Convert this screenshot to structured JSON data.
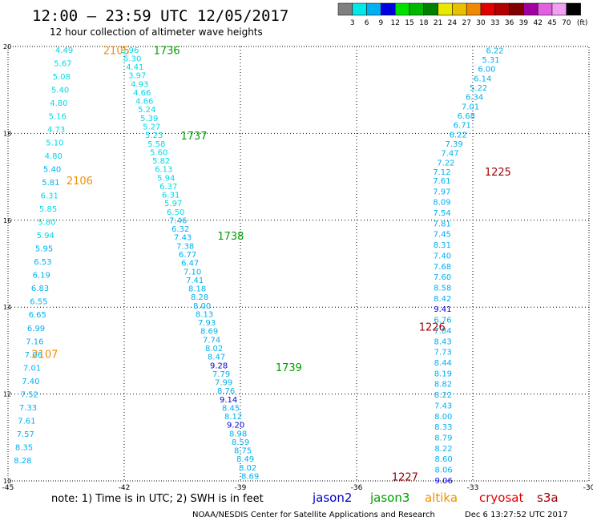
{
  "header": {
    "title": "12:00 — 23:59 UTC 12/05/2017",
    "subtitle": "12 hour collection of altimeter wave heights"
  },
  "colorbar": {
    "colors": [
      "#808080",
      "#00e8e8",
      "#00b0f0",
      "#0000e0",
      "#00e000",
      "#00b800",
      "#008000",
      "#e8e800",
      "#e8c000",
      "#f08800",
      "#e00000",
      "#b00000",
      "#800000",
      "#a000a0",
      "#e060e0",
      "#f0a0f0",
      "#000000"
    ],
    "labels": [
      "3",
      "6",
      "9",
      "12",
      "15",
      "18",
      "21",
      "24",
      "27",
      "30",
      "33",
      "36",
      "39",
      "42",
      "45",
      "70"
    ],
    "unit": "(ft)"
  },
  "footer": {
    "note": "note:  1) Time is in UTC; 2) SWH is in feet",
    "satellites": [
      {
        "name": "jason2",
        "color": "#0000cc"
      },
      {
        "name": "jason3",
        "color": "#00a000"
      },
      {
        "name": "altika",
        "color": "#f09000"
      },
      {
        "name": "cryosat",
        "color": "#e00000"
      },
      {
        "name": "s3a",
        "color": "#a00000"
      }
    ],
    "credit": "NOAA/NESDIS Center for Satellite Applications and Research",
    "timestamp": "Dec  6 13:27:52 UTC 2017"
  },
  "chart_data": {
    "type": "scatter",
    "xlim": [
      -45,
      -30
    ],
    "ylim": [
      10,
      20
    ],
    "x_ticks": [
      "-45",
      "-42",
      "-39",
      "-36",
      "-33",
      "-30"
    ],
    "y_ticks": [
      "20",
      "18",
      "16",
      "14",
      "12",
      "10"
    ],
    "x_tick_values": [
      -45,
      -42,
      -39,
      -36,
      -33,
      -30
    ],
    "y_tick_values": [
      20,
      18,
      16,
      14,
      12,
      10
    ],
    "grid": true,
    "tracks": [
      {
        "start": [
          -43.55,
          19.93
        ],
        "end": [
          -44.62,
          10.48
        ],
        "values": [
          "4.49",
          "5.67",
          "5.08",
          "5.40",
          "4.80",
          "5.16",
          "4.73",
          "5.10",
          "4.80",
          "5.40",
          "5.81",
          "6.31",
          "5.85",
          "5.80",
          "5.94",
          "5.95",
          "6.53",
          "6.19",
          "6.83",
          "6.55",
          "6.65",
          "6.99",
          "7.16",
          "7.06",
          "7.01",
          "7.40",
          "7.52",
          "7.33",
          "7.61",
          "7.57",
          "8.35",
          "8.28"
        ],
        "colors": {
          "9": "#00b0f0",
          "10": "#00b0f0",
          "15": "#00b0f0",
          "16": "#00b0f0",
          "17": "#00b0f0",
          "18": "#00b0f0",
          "19": "#00b0f0",
          "20": "#00b0f0",
          "21": "#00b0f0",
          "22": "#00b0f0",
          "23": "#00b0f0",
          "24": "#00b0f0",
          "25": "#00b0f0",
          "26": "#00b0f0",
          "27": "#00b0f0",
          "28": "#00b0f0",
          "29": "#00b0f0",
          "30": "#00b0f0",
          "31": "#00b0f0"
        }
      },
      {
        "start": [
          -41.85,
          19.93
        ],
        "end": [
          -38.75,
          10.12
        ],
        "values": [
          "3.96",
          "5.30",
          "4.41",
          "3.97",
          "4.93",
          "4.66",
          "4.66",
          "5.24",
          "5.39",
          "5.27",
          "5.23",
          "5.58",
          "5.60",
          "5.82",
          "6.13",
          "5.94",
          "6.37",
          "6.31",
          "5.97",
          "6.50",
          "7.46",
          "6.32",
          "7.43",
          "7.38",
          "6.77",
          "6.47",
          "7.10",
          "7.41",
          "8.18",
          "8.28",
          "8.00",
          "8.13",
          "7.93",
          "8.69",
          "7.74",
          "8.02",
          "8.47",
          "9.28",
          "7.79",
          "7.99",
          "8.76",
          "9.14",
          "8.45",
          "8.12",
          "9.20",
          "8.98",
          "8.59",
          "8.75",
          "8.49",
          "8.02",
          "8.69"
        ],
        "colors": {
          "37": "#0000e0",
          "41": "#0000e0",
          "44": "#0000e0",
          "20": "#00b0f0",
          "21": "#00b0f0",
          "22": "#00b0f0",
          "23": "#00b0f0",
          "24": "#00b0f0",
          "25": "#00b0f0",
          "26": "#00b0f0",
          "27": "#00b0f0",
          "28": "#00b0f0",
          "29": "#00b0f0",
          "30": "#00b0f0",
          "31": "#00b0f0",
          "32": "#00b0f0",
          "33": "#00b0f0",
          "34": "#00b0f0",
          "35": "#00b0f0",
          "36": "#00b0f0",
          "38": "#00b0f0",
          "39": "#00b0f0",
          "40": "#00b0f0",
          "42": "#00b0f0",
          "43": "#00b0f0",
          "45": "#00b0f0",
          "46": "#00b0f0",
          "47": "#00b0f0",
          "48": "#00b0f0",
          "49": "#00b0f0",
          "50": "#00b0f0"
        }
      },
      {
        "start": [
          -32.43,
          19.92
        ],
        "end": [
          -33.8,
          17.12
        ],
        "values": [
          "6.22",
          "5.31",
          "6.00",
          "6.14",
          "5.22",
          "6.34",
          "7.01",
          "6.68",
          "6.71",
          "6.22",
          "7.39",
          "7.47",
          "7.22",
          "7.12"
        ],
        "colors": {
          "0": "#00b0f0",
          "1": "#00b0f0",
          "2": "#00b0f0",
          "3": "#00b0f0",
          "4": "#00b0f0",
          "5": "#00b0f0",
          "6": "#00b0f0",
          "7": "#00b0f0",
          "8": "#00b0f0",
          "9": "#00b0f0",
          "10": "#00b0f0",
          "11": "#00b0f0",
          "12": "#00b0f0",
          "13": "#00b0f0"
        }
      },
      {
        "start": [
          -33.8,
          16.92
        ],
        "end": [
          -33.75,
          10.02
        ],
        "values": [
          "7.61",
          "7.97",
          "8.09",
          "7.54",
          "7.81",
          "7.45",
          "8.31",
          "7.40",
          "7.68",
          "7.60",
          "8.58",
          "8.42",
          "9.41",
          "6.76",
          "7.84",
          "8.43",
          "7.73",
          "8.44",
          "8.19",
          "8.82",
          "8.22",
          "7.43",
          "8.00",
          "8.33",
          "8.79",
          "8.22",
          "8.60",
          "8.06",
          "9.06"
        ],
        "colors": {
          "12": "#0000e0",
          "28": "#0000e0",
          "0": "#00b0f0",
          "1": "#00b0f0",
          "2": "#00b0f0",
          "3": "#00b0f0",
          "4": "#00b0f0",
          "5": "#00b0f0",
          "6": "#00b0f0",
          "7": "#00b0f0",
          "8": "#00b0f0",
          "9": "#00b0f0",
          "10": "#00b0f0",
          "11": "#00b0f0",
          "13": "#00b0f0",
          "14": "#00b0f0",
          "15": "#00b0f0",
          "16": "#00b0f0",
          "17": "#00b0f0",
          "18": "#00b0f0",
          "19": "#00b0f0",
          "20": "#00b0f0",
          "21": "#00b0f0",
          "22": "#00b0f0",
          "23": "#00b0f0",
          "24": "#00b0f0",
          "25": "#00b0f0",
          "26": "#00b0f0",
          "27": "#00b0f0"
        }
      }
    ],
    "time_labels": [
      {
        "text": "2105",
        "x": -42.2,
        "y": 19.92,
        "color": "#f09000"
      },
      {
        "text": "1736",
        "x": -40.9,
        "y": 19.92,
        "color": "#00a000"
      },
      {
        "text": "1737",
        "x": -40.2,
        "y": 17.95,
        "color": "#00a000"
      },
      {
        "text": "2106",
        "x": -43.15,
        "y": 16.92,
        "color": "#f09000"
      },
      {
        "text": "1225",
        "x": -32.35,
        "y": 17.12,
        "color": "#a00000"
      },
      {
        "text": "1738",
        "x": -39.25,
        "y": 15.65,
        "color": "#00a000"
      },
      {
        "text": "1226",
        "x": -34.05,
        "y": 13.55,
        "color": "#a00000"
      },
      {
        "text": "2107",
        "x": -44.05,
        "y": 12.92,
        "color": "#f09000"
      },
      {
        "text": "1739",
        "x": -37.75,
        "y": 12.62,
        "color": "#00a000"
      },
      {
        "text": "1227",
        "x": -34.75,
        "y": 10.1,
        "color": "#a00000"
      }
    ]
  }
}
